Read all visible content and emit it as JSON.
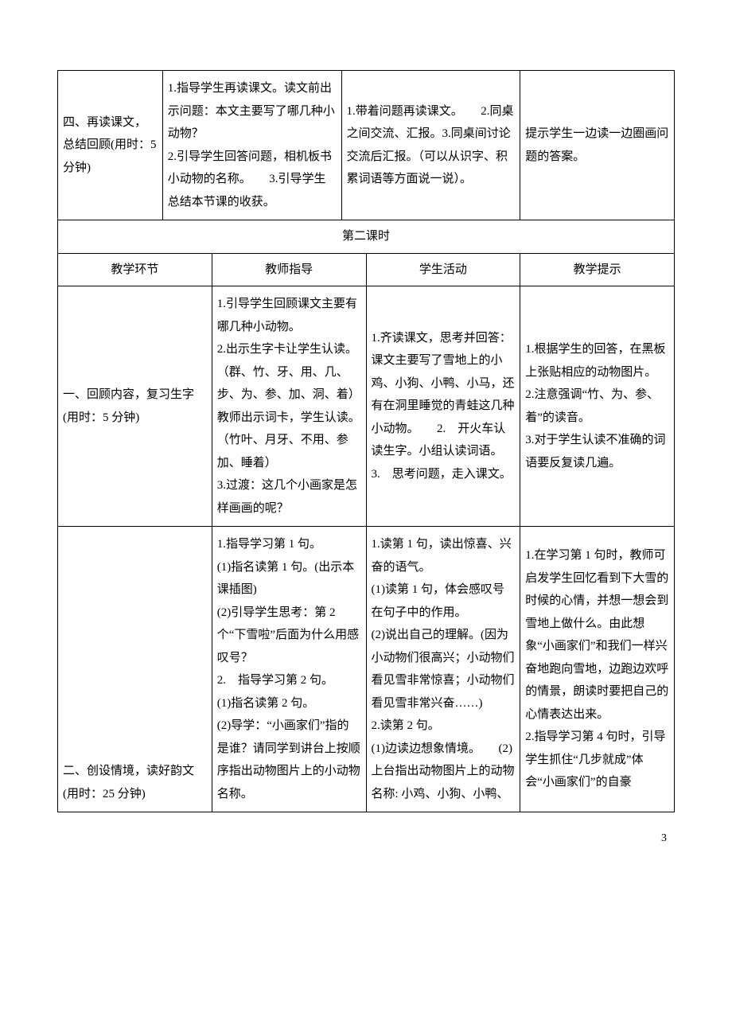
{
  "table1": {
    "row1": {
      "col1": "四、再读课文，总结回顾(用时：5 分钟)",
      "col2": "1.指导学生再读课文。读文前出示问题：本文主要写了哪几种小动物？\u00002.引导学生回答问题，相机板书小动物的名称。　　3.引导学生总结本节课的收获。",
      "col3": "1.带着问题再读课文。　　2.同桌之间交流、汇报。3.同桌间讨论交流后汇报。（可以从识字、积累词语等方面说一说）。",
      "col4": "提示学生一边读一边圈画问题的答案。"
    }
  },
  "table2": {
    "header_span": "第二课时",
    "header": {
      "c1": "教学环节",
      "c2": "教师指导",
      "c3": "学生活动",
      "c4": "教学提示"
    },
    "row1": {
      "col1": "一、回顾内容，复习生字(用时：5 分钟)",
      "col2": "1.引导学生回顾课文主要有哪几种小动物。\u00002.出示生字卡让学生认读。（群、竹、牙、用、几、步、为、参、加、洞、着）教师出示词卡，学生认读。（竹叶、月牙、不用、参加、睡着）\u00003.过渡：这几个小画家是怎样画画的呢？",
      "col3": "1.齐读课文，思考并回答：课文主要写了雪地上的小鸡、小狗、小鸭、小马，还有在洞里睡觉的青蛙这几种小动物。　　2.　开火车认读生字。小组认读词语。　　3.　思考问题，走入课文。",
      "col4": "1.根据学生的回答，在黑板上张贴相应的动物图片。\u00002.注意强调“竹、为、参、着”的读音。\u00003.对于学生认读不准确的词语要反复读几遍。"
    },
    "row2": {
      "col1": "二、创设情境，读好韵文(用时：25 分钟)",
      "col2": "1.指导学习第 1 句。\u0000(1)指名读第 1 句。(出示本课插图)\u0000(2)引导学生思考：第 2 个“下雪啦”后面为什么用感叹号？\u00002.　指导学习第 2 句。\u0000(1)指名读第 2 句。\u0000(2)导学：“小画家们”指的是谁？请同学到讲台上按顺序指出动物图片上的小动物名称。",
      "col3": "1.读第 1 句，读出惊喜、兴奋的语气。\u0000(1)读第 1 句，体会感叹号在句子中的作用。\u0000(2)说出自己的理解。(因为小动物们很高兴；小动物们看见雪非常惊喜；小动物们看见雪非常兴奋……)\u00002.读第 2 句。\u0000(1)边读边想象情境。　　(2)上台指出动物图片上的动物名称: 小鸡、小狗、小鸭、",
      "col4": "1.在学习第 1 句时，教师可启发学生回忆看到下大雪的时候的心情，并想一想会到雪地上做什么。由此想象“小画家们”和我们一样兴奋地跑向雪地，边跑边欢呼的情景，朗读时要把自己的心情表达出来。\u00002.指导学习第 4 句时，引导学生抓住“几步就成”体会“小画家们”的自豪"
    }
  },
  "pageNumber": "3"
}
